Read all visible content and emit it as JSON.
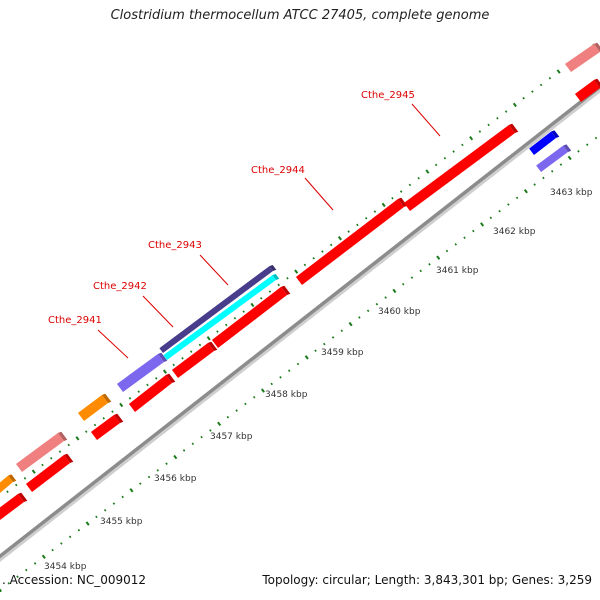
{
  "title": "Clostridium thermocellum ATCC 27405, complete genome",
  "accession": ". Accession: NC_009012",
  "stats": "Topology: circular; Length: 3,843,301 bp; Genes: 3,259",
  "gene_labels": [
    "Cthe_2941",
    "Cthe_2942",
    "Cthe_2943",
    "Cthe_2944",
    "Cthe_2945"
  ],
  "kbp_labels": [
    "3454 kbp",
    "3455 kbp",
    "3456 kbp",
    "3457 kbp",
    "3458 kbp",
    "3459 kbp",
    "3460 kbp",
    "3461 kbp",
    "3462 kbp",
    "3463 kbp"
  ],
  "colors": {
    "backbone": "#8c8c8c",
    "cds": "#ff0000",
    "cds_light": "#f08080",
    "purple": "#7b68ee",
    "navy": "#483d8b",
    "cyan": "#00ffff",
    "orange": "#ff8c00",
    "blue": "#0000ff",
    "tick": "#1a7a1a",
    "gene_label": "#dd0000"
  }
}
